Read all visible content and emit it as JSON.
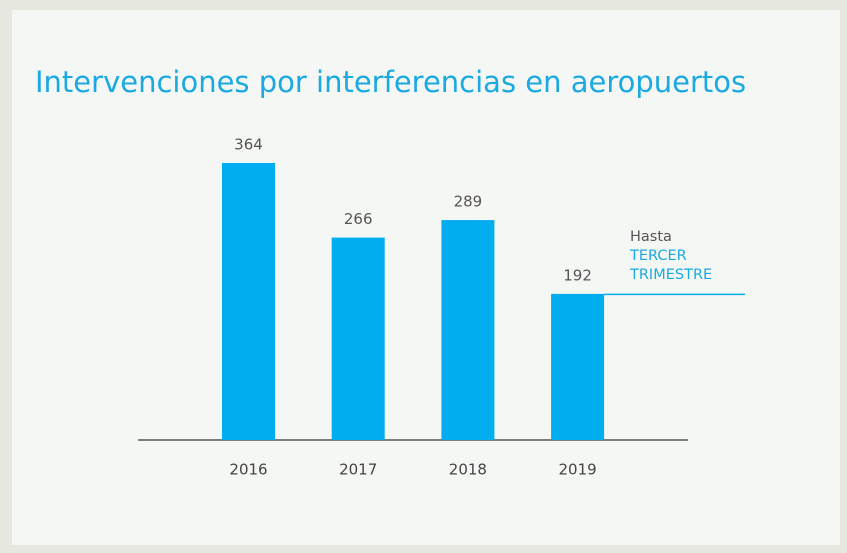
{
  "chart_data": {
    "type": "bar",
    "title": "Intervenciones por interferencias en aeropuertos",
    "categories": [
      "2016",
      "2017",
      "2018",
      "2019"
    ],
    "values": [
      364,
      266,
      289,
      192
    ],
    "color": "#00aeef",
    "annotation": [
      "Hasta",
      "TERCER",
      "TRIMESTRE"
    ]
  }
}
